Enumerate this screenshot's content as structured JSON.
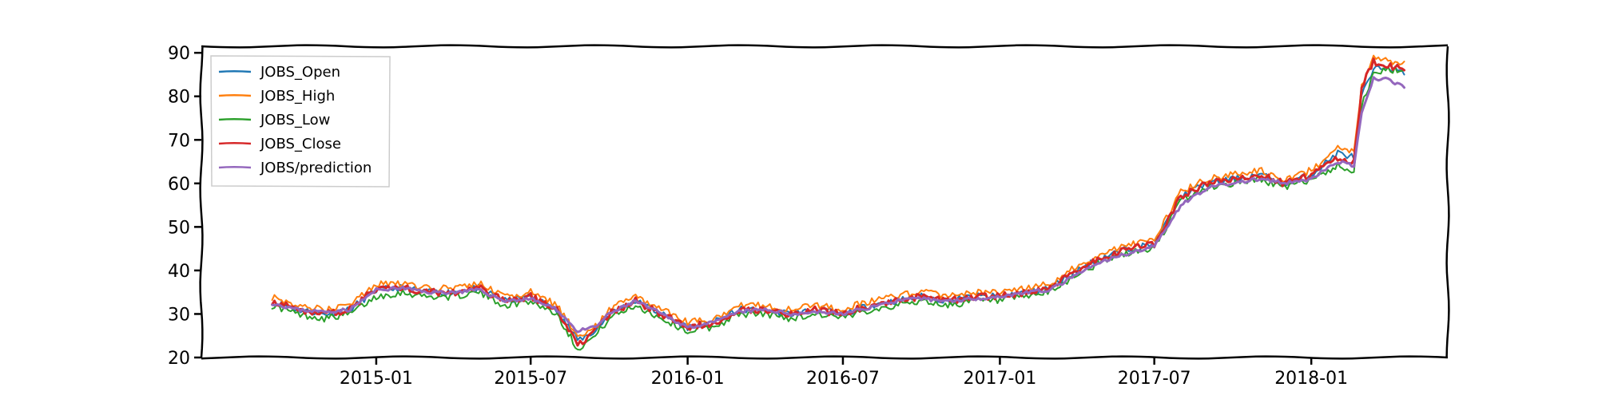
{
  "chart_data": {
    "type": "line",
    "title": "",
    "xlabel": "",
    "ylabel": "",
    "x_axis": {
      "type": "date",
      "range": [
        "2014-06-10",
        "2018-06-10"
      ]
    },
    "ylim": [
      20,
      91.5
    ],
    "y_ticks": [
      20,
      30,
      40,
      50,
      60,
      70,
      80,
      90
    ],
    "x_ticks": [
      {
        "date": "2015-01-01",
        "label": "2015-01"
      },
      {
        "date": "2015-07-01",
        "label": "2015-07"
      },
      {
        "date": "2016-01-01",
        "label": "2016-01"
      },
      {
        "date": "2016-07-01",
        "label": "2016-07"
      },
      {
        "date": "2017-01-01",
        "label": "2017-01"
      },
      {
        "date": "2017-07-01",
        "label": "2017-07"
      },
      {
        "date": "2018-01-01",
        "label": "2018-01"
      }
    ],
    "grid": false,
    "legend": {
      "position": "top-left"
    },
    "dates": [
      "2014-09-01",
      "2014-10-01",
      "2014-11-01",
      "2014-12-01",
      "2015-01-01",
      "2015-02-01",
      "2015-03-01",
      "2015-04-01",
      "2015-05-01",
      "2015-06-01",
      "2015-07-01",
      "2015-08-01",
      "2015-08-25",
      "2015-09-15",
      "2015-10-01",
      "2015-11-01",
      "2015-12-01",
      "2016-01-01",
      "2016-02-01",
      "2016-03-01",
      "2016-04-01",
      "2016-05-01",
      "2016-06-01",
      "2016-07-01",
      "2016-08-01",
      "2016-09-01",
      "2016-10-01",
      "2016-11-01",
      "2016-12-01",
      "2017-01-01",
      "2017-02-01",
      "2017-03-01",
      "2017-04-01",
      "2017-05-01",
      "2017-06-01",
      "2017-07-01",
      "2017-08-01",
      "2017-09-01",
      "2017-10-01",
      "2017-11-01",
      "2017-12-01",
      "2018-01-01",
      "2018-02-01",
      "2018-02-20",
      "2018-03-01",
      "2018-03-15",
      "2018-04-01",
      "2018-04-20"
    ],
    "series": [
      {
        "name": "JOBS_Open",
        "color": "#1f77b4",
        "width": 2,
        "values": [
          33,
          31,
          30,
          31,
          35.5,
          36,
          35,
          35,
          36,
          33,
          34,
          31,
          24,
          26,
          30,
          33,
          30,
          27,
          28,
          31,
          31,
          30,
          31,
          30,
          32,
          33,
          34,
          33,
          34,
          34,
          35,
          36,
          40,
          43,
          45,
          46,
          57,
          60,
          61,
          62,
          60,
          62,
          67,
          66,
          80,
          86,
          87,
          85
        ]
      },
      {
        "name": "JOBS_High",
        "color": "#ff7f0e",
        "width": 2,
        "values": [
          34,
          32,
          31,
          32,
          37,
          37,
          36,
          36,
          37,
          34,
          35,
          32,
          25,
          27,
          31,
          34,
          31,
          28,
          29,
          32,
          32,
          31,
          32,
          31,
          33,
          34,
          35,
          34,
          35,
          35,
          36,
          37,
          41,
          44,
          46,
          47,
          58,
          61,
          62,
          63,
          61,
          63,
          68,
          67,
          82,
          89,
          88,
          88
        ]
      },
      {
        "name": "JOBS_Low",
        "color": "#2ca02c",
        "width": 2,
        "values": [
          32,
          30,
          29,
          30,
          34,
          35,
          34,
          34,
          35,
          32,
          33,
          30,
          22,
          25,
          29,
          32,
          29,
          26,
          27,
          30,
          30,
          29,
          30,
          29,
          31,
          32,
          33,
          32,
          33,
          33,
          34,
          35,
          39,
          42,
          44,
          45,
          56,
          59,
          60,
          61,
          59,
          61,
          64,
          63,
          78,
          85,
          86,
          86
        ]
      },
      {
        "name": "JOBS_Close",
        "color": "#d62728",
        "width": 3,
        "values": [
          33,
          31,
          30,
          31,
          36,
          36,
          35,
          35,
          36,
          33,
          34,
          31,
          23,
          26,
          30,
          33,
          30,
          27,
          28,
          31,
          31,
          30,
          31,
          30,
          32,
          33,
          34,
          33,
          34,
          34,
          35,
          36,
          40,
          43,
          45,
          46,
          57,
          60,
          61,
          62,
          60,
          62,
          66,
          65,
          82,
          88,
          87,
          86
        ]
      },
      {
        "name": "JOBS/prediction",
        "color": "#9467bd",
        "width": 3,
        "values": [
          32.5,
          31,
          30.5,
          31,
          35.5,
          36,
          35,
          35,
          35.5,
          33,
          33.5,
          31,
          26,
          27,
          30,
          33,
          30,
          27,
          28,
          30.5,
          31,
          30,
          30.5,
          30,
          31.5,
          33,
          33.5,
          33,
          33.5,
          34,
          35,
          35.5,
          39,
          42,
          44,
          45.5,
          55,
          59,
          60,
          61,
          60,
          61,
          65,
          64,
          76,
          84,
          84,
          82
        ]
      }
    ]
  }
}
